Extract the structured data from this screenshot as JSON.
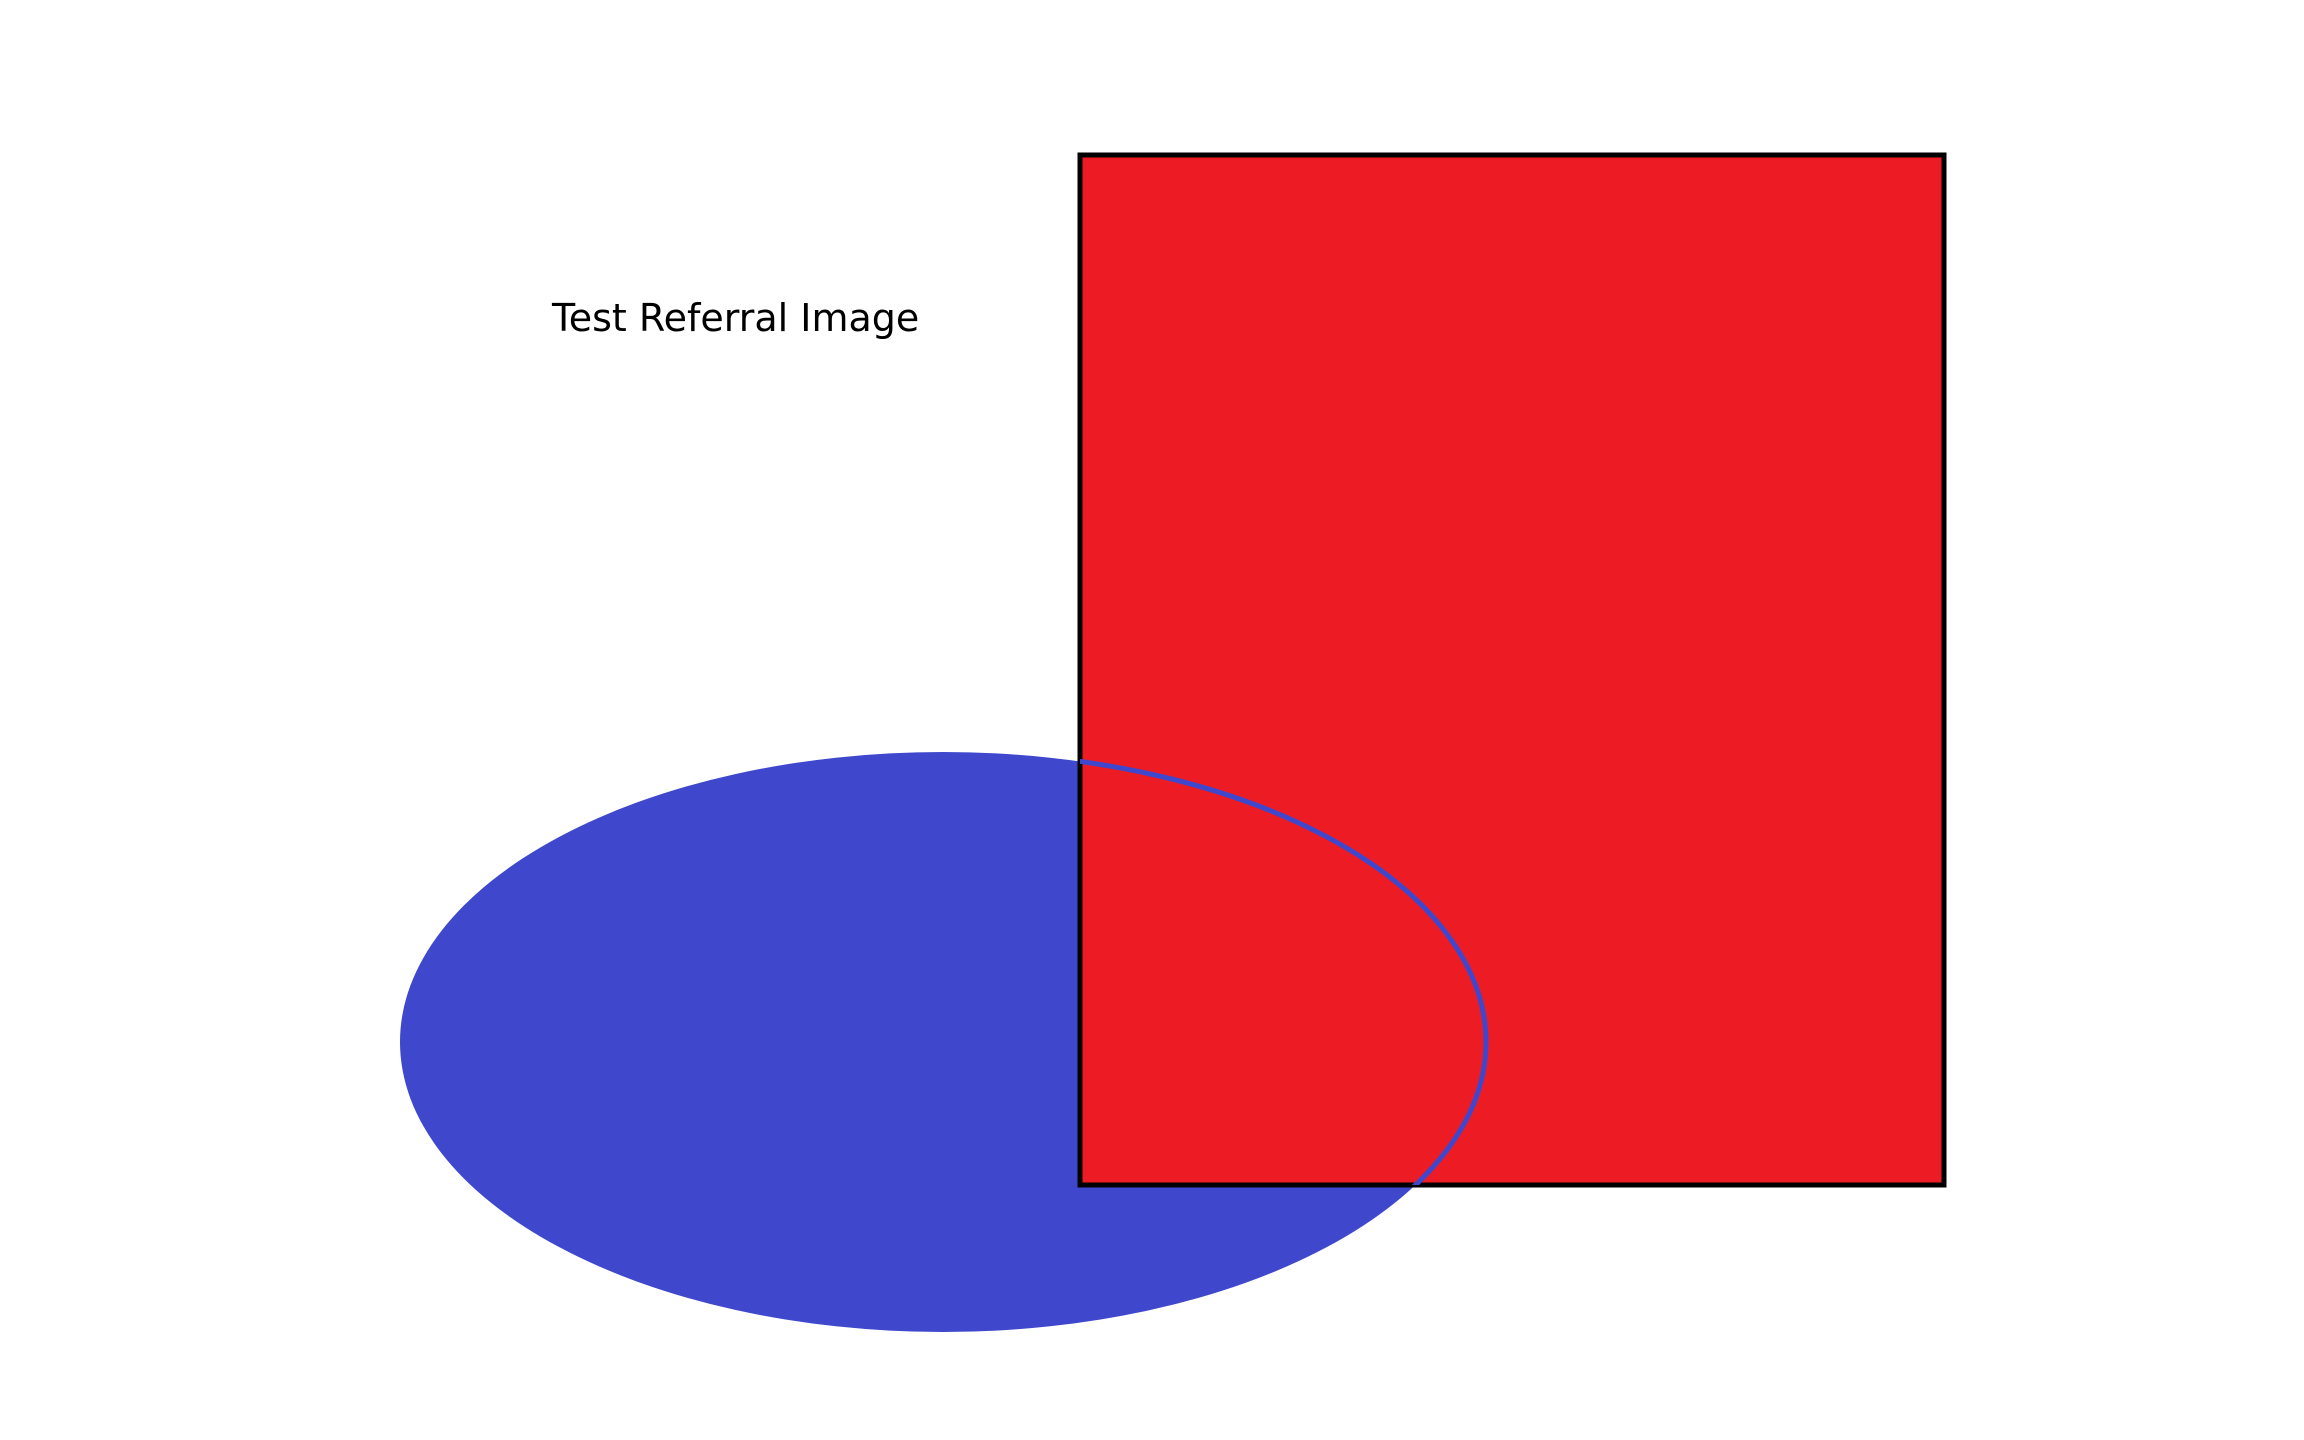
{
  "caption": "Test Referral Image",
  "colors": {
    "background": "#ffffff",
    "rectangle_fill": "#ed1c24",
    "rectangle_stroke": "#000000",
    "ellipse_fill": "#3f48cc",
    "text": "#000000"
  }
}
